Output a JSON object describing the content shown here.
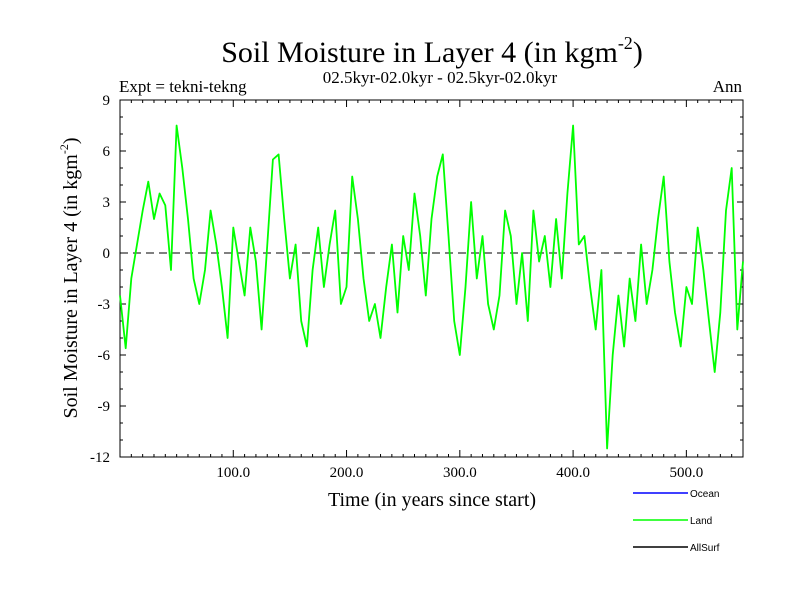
{
  "chart_data": {
    "type": "line",
    "title": "Soil Moisture in Layer 4 (in kgm",
    "title_sup": "-2",
    "title_close": ")",
    "subtitle": "02.5kyr-02.0kyr - 02.5kyr-02.0kyr",
    "expt_label": "Expt = tekni-tekng",
    "period_label": "Ann",
    "xlabel": "Time (in years since start)",
    "ylabel": "Soil Moisture in Layer 4 (in kgm",
    "ylabel_sup": "-2",
    "ylabel_close": ")",
    "xlim": [
      0,
      550
    ],
    "ylim": [
      -12,
      9
    ],
    "yticks": [
      -12,
      -9,
      -6,
      -3,
      0,
      3,
      6,
      9
    ],
    "ytick_labels": [
      "-12",
      "-9",
      "-6",
      "-3",
      "0",
      "3",
      "6",
      "9"
    ],
    "xticks": [
      100,
      200,
      300,
      400,
      500
    ],
    "xtick_labels": [
      "100.0",
      "200.0",
      "300.0",
      "400.0",
      "500.0"
    ],
    "zero_line": true,
    "legend": [
      {
        "name": "Ocean",
        "color": "#0000ff"
      },
      {
        "name": "Land",
        "color": "#00ff00"
      },
      {
        "name": "AllSurf",
        "color": "#000000"
      }
    ],
    "series": [
      {
        "name": "Land",
        "color": "#00ff00",
        "x": [
          0,
          5,
          10,
          15,
          20,
          25,
          30,
          35,
          40,
          45,
          50,
          55,
          60,
          65,
          70,
          75,
          80,
          85,
          90,
          95,
          100,
          105,
          110,
          115,
          120,
          125,
          130,
          135,
          140,
          145,
          150,
          155,
          160,
          165,
          170,
          175,
          180,
          185,
          190,
          195,
          200,
          205,
          210,
          215,
          220,
          225,
          230,
          235,
          240,
          245,
          250,
          255,
          260,
          265,
          270,
          275,
          280,
          285,
          290,
          295,
          300,
          305,
          310,
          315,
          320,
          325,
          330,
          335,
          340,
          345,
          350,
          355,
          360,
          365,
          370,
          375,
          380,
          385,
          390,
          395,
          400,
          405,
          410,
          415,
          420,
          425,
          430,
          435,
          440,
          445,
          450,
          455,
          460,
          465,
          470,
          475,
          480,
          485,
          490,
          495,
          500,
          505,
          510,
          515,
          520,
          525,
          530,
          535,
          540,
          545,
          550
        ],
        "values": [
          -2.5,
          -5.6,
          -1.5,
          0.5,
          2.5,
          4.2,
          2.0,
          3.5,
          2.8,
          -1.0,
          7.5,
          5.0,
          2.0,
          -1.5,
          -3.0,
          -1.0,
          2.5,
          0.5,
          -2.0,
          -5.0,
          1.5,
          -0.5,
          -2.5,
          1.5,
          -0.5,
          -4.5,
          0.5,
          5.5,
          5.8,
          2.0,
          -1.5,
          0.5,
          -4.0,
          -5.5,
          -1.0,
          1.5,
          -2.0,
          0.5,
          2.5,
          -3.0,
          -2.0,
          4.5,
          2.0,
          -1.5,
          -4.0,
          -3.0,
          -5.0,
          -2.0,
          0.5,
          -3.5,
          1.0,
          -1.0,
          3.5,
          1.0,
          -2.5,
          2.0,
          4.5,
          5.8,
          1.0,
          -4.0,
          -6.0,
          -2.0,
          3.0,
          -1.5,
          1.0,
          -3.0,
          -4.5,
          -2.5,
          2.5,
          1.0,
          -3.0,
          0.0,
          -4.0,
          2.5,
          -0.5,
          1.0,
          -2.0,
          2.0,
          -1.5,
          3.5,
          7.5,
          0.5,
          1.0,
          -2.0,
          -4.5,
          -1.0,
          -11.5,
          -6.0,
          -2.5,
          -5.5,
          -1.5,
          -4.0,
          0.5,
          -3.0,
          -1.0,
          2.0,
          4.5,
          -0.5,
          -3.5,
          -5.5,
          -2.0,
          -3.0,
          1.5,
          -1.0,
          -4.0,
          -7.0,
          -3.5,
          2.5,
          5.0,
          -4.5,
          -0.5
        ]
      }
    ]
  }
}
